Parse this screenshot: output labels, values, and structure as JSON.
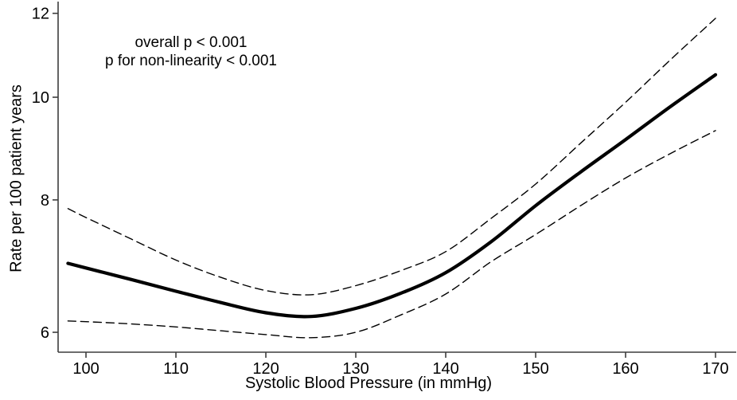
{
  "chart_data": {
    "type": "line",
    "title": "",
    "xlabel": "Systolic Blood Pressure (in mmHg)",
    "ylabel": "Rate per 100 patient years",
    "annotation_lines": [
      "overall p < 0.001",
      "p for non-linearity < 0.001"
    ],
    "x": [
      98,
      100,
      105,
      110,
      115,
      120,
      125,
      130,
      135,
      140,
      145,
      150,
      155,
      160,
      165,
      170
    ],
    "series": [
      {
        "name": "estimated-rate",
        "style": "solid",
        "values": [
          6.97,
          6.9,
          6.73,
          6.56,
          6.4,
          6.26,
          6.21,
          6.32,
          6.53,
          6.83,
          7.3,
          7.9,
          8.5,
          9.12,
          9.8,
          10.5
        ]
      },
      {
        "name": "upper-95-ci",
        "style": "dashed",
        "values": [
          7.85,
          7.7,
          7.35,
          7.02,
          6.76,
          6.57,
          6.51,
          6.64,
          6.86,
          7.15,
          7.68,
          8.28,
          9.05,
          9.89,
          10.85,
          11.87
        ]
      },
      {
        "name": "lower-95-ci",
        "style": "dashed",
        "values": [
          6.15,
          6.14,
          6.11,
          6.07,
          6.02,
          5.97,
          5.93,
          6.0,
          6.23,
          6.52,
          6.99,
          7.42,
          7.9,
          8.39,
          8.85,
          9.3
        ]
      }
    ],
    "x_ticks": [
      100,
      110,
      120,
      130,
      140,
      150,
      160,
      170
    ],
    "y_ticks": [
      6,
      8,
      10,
      12
    ],
    "y_scale": "log",
    "xlim": [
      96.9,
      172.3
    ],
    "ylim": [
      5.746,
      12.31
    ],
    "grid": false,
    "legend": "none",
    "line_color": "#000000",
    "axis_color": "#3d3d3d"
  }
}
